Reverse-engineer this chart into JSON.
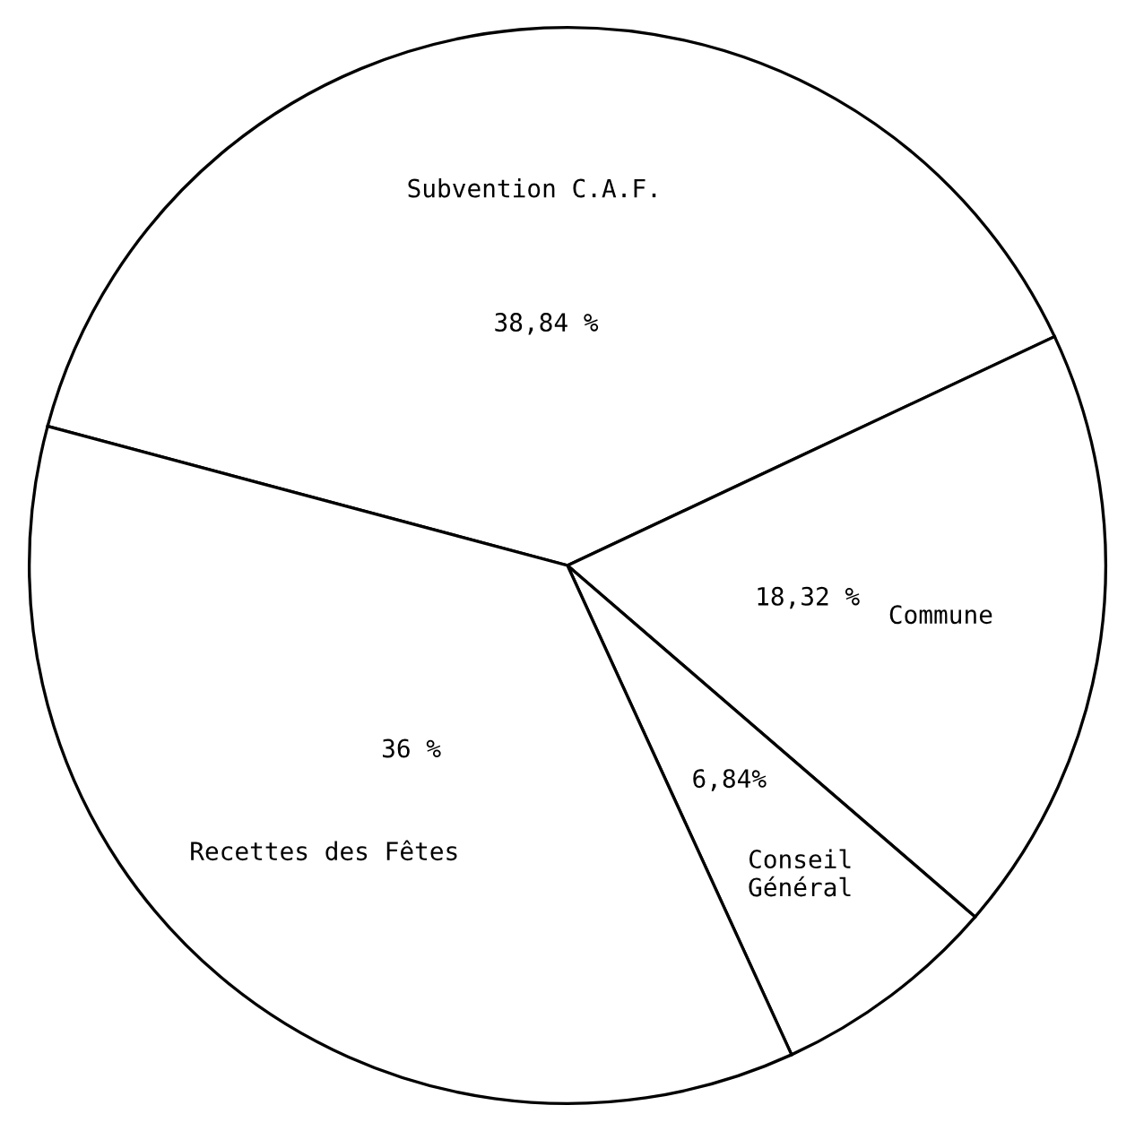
{
  "chart_data": {
    "type": "pie",
    "categories": [
      "Subvention C.A.F.",
      "Commune",
      "Conseil\nGénéral",
      "Recettes des Fêtes"
    ],
    "values": [
      38.84,
      18.32,
      6.84,
      36
    ],
    "value_labels": [
      "38,84 %",
      "18,32 %",
      "6,84%",
      "36 %"
    ],
    "colors": [
      "#ffffff",
      "#ffffff",
      "#ffffff",
      "#ffffff"
    ]
  }
}
